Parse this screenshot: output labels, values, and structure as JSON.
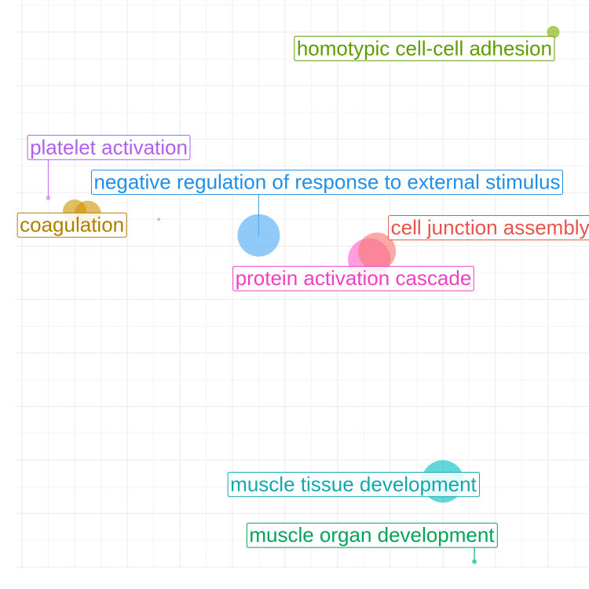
{
  "chart_data": {
    "type": "scatter",
    "title": "",
    "xlabel": "",
    "ylabel": "",
    "xlim": [
      0,
      10.6
    ],
    "ylim": [
      0,
      10.6
    ],
    "grid": true,
    "legend": "none",
    "points": [
      {
        "label": "homotypic cell-cell adhesion",
        "x": 10.1,
        "y": 10.0,
        "size": 8,
        "color": "#7CAE00",
        "label_x": 7.65,
        "label_y": 9.7,
        "label_color": "#5E9C00"
      },
      {
        "label": "platelet activation",
        "x": 0.5,
        "y": 6.9,
        "size": 3,
        "color": "#C77CFF",
        "label_x": 1.65,
        "label_y": 7.85,
        "label_color": "#B15FF0"
      },
      {
        "label": "negative regulation of response to external stimulus",
        "x": 4.5,
        "y": 6.2,
        "size": 27,
        "color": "#4DAAF5",
        "label_x": 5.8,
        "label_y": 7.2,
        "label_color": "#1F8FE8"
      },
      {
        "label": "coagulation",
        "x": 1.25,
        "y": 6.6,
        "size": 17,
        "color": "#CD9600",
        "label_x": 0.95,
        "label_y": 6.4,
        "label_color": "#B07F00"
      },
      {
        "label": "",
        "x": 1.0,
        "y": 6.65,
        "size": 15,
        "color": "#CD9600"
      },
      {
        "label": "",
        "x": 2.6,
        "y": 6.5,
        "size": 2,
        "color": "#C77CFF"
      },
      {
        "label": "cell junction assembly",
        "x": 6.75,
        "y": 5.9,
        "size": 24,
        "color": "#F8766D",
        "label_x": 8.9,
        "label_y": 6.35,
        "label_color": "#E8534A"
      },
      {
        "label": "protein activation cascade",
        "x": 6.6,
        "y": 5.75,
        "size": 27,
        "color": "#FF61CC",
        "label_x": 6.3,
        "label_y": 5.4,
        "label_color": "#F03FC0"
      },
      {
        "label": "muscle tissue development",
        "x": 8.0,
        "y": 1.6,
        "size": 27,
        "color": "#00BFC4",
        "label_x": 6.3,
        "label_y": 1.55,
        "label_color": "#12A9AD"
      },
      {
        "label": "muscle organ development",
        "x": 8.6,
        "y": 0.1,
        "size": 3,
        "color": "#00BE67",
        "label_x": 6.65,
        "label_y": 0.6,
        "label_color": "#00A357"
      }
    ]
  }
}
